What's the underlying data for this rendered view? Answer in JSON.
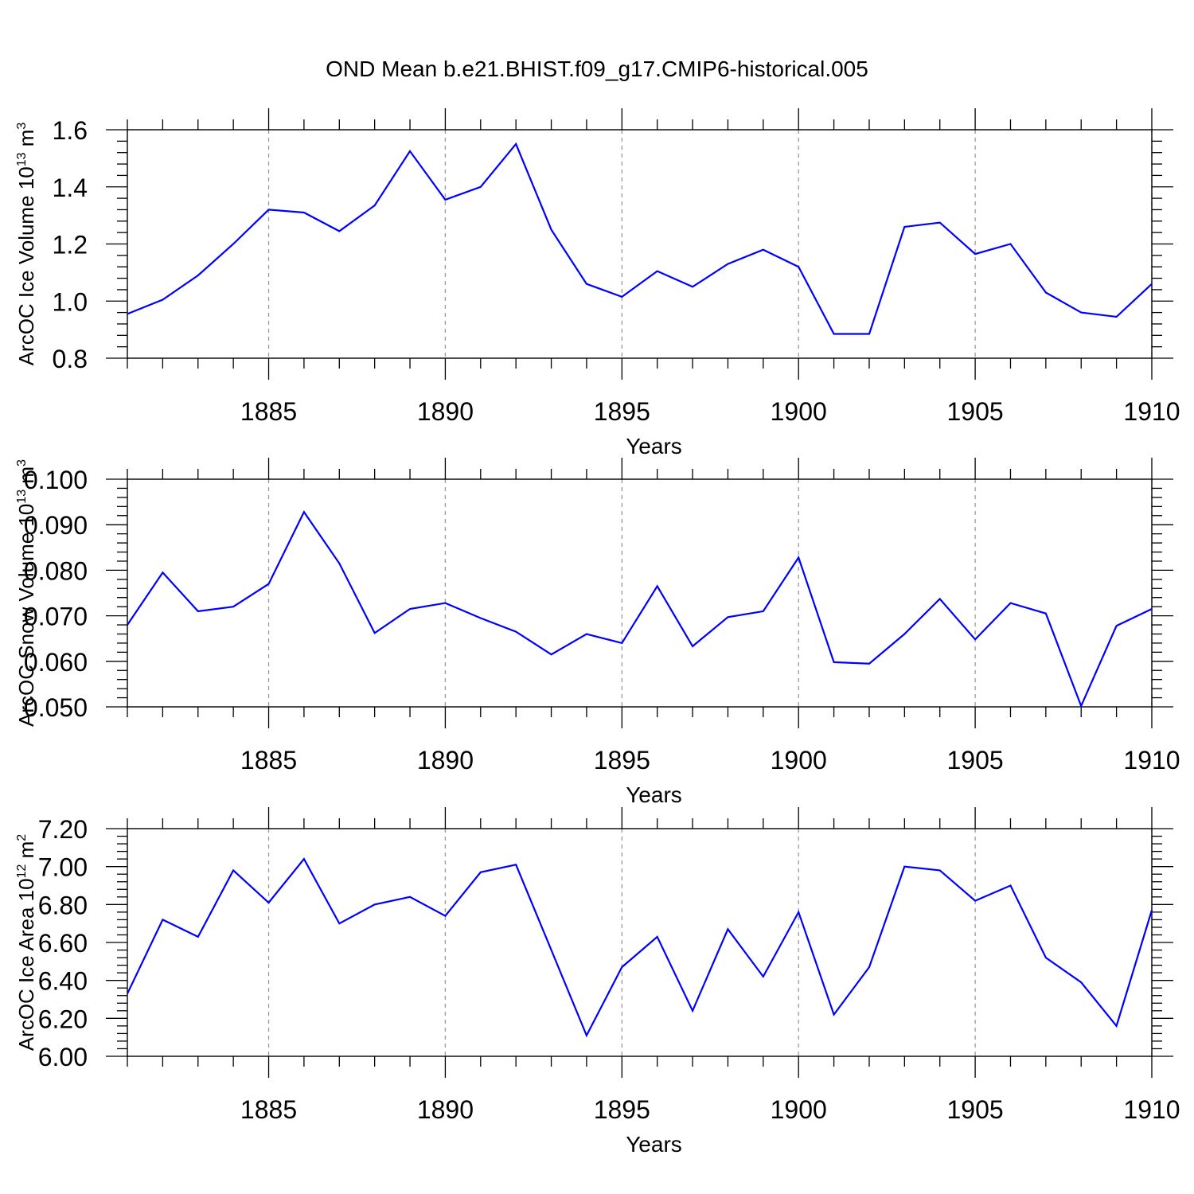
{
  "figure": {
    "title": "OND Mean b.e21.BHIST.f09_g17.CMIP6-historical.005",
    "line_color": "#0000ff",
    "grid_color": "#999999"
  },
  "chart_data": [
    {
      "type": "line",
      "xlabel": "Years",
      "ylabel": "ArcOC Ice Volume 10",
      "ylabel_sup1": "13",
      "ylabel_mid": " m",
      "ylabel_sup2": "3",
      "xlim": [
        1881,
        1910
      ],
      "ylim": [
        0.8,
        1.6
      ],
      "yticks": [
        0.8,
        1.0,
        1.2,
        1.4,
        1.6
      ],
      "yticklabels": [
        "0.8",
        "1.0",
        "1.2",
        "1.4",
        "1.6"
      ],
      "xticks": [
        1885,
        1890,
        1895,
        1900,
        1905,
        1910
      ],
      "xticklabels": [
        "1885",
        "1890",
        "1895",
        "1900",
        "1905",
        "1910"
      ],
      "grid": "vertical dashed at major x ticks",
      "x": [
        1881,
        1882,
        1883,
        1884,
        1885,
        1886,
        1887,
        1888,
        1889,
        1890,
        1891,
        1892,
        1893,
        1894,
        1895,
        1896,
        1897,
        1898,
        1899,
        1900,
        1901,
        1902,
        1903,
        1904,
        1905,
        1906,
        1907,
        1908,
        1909,
        1910
      ],
      "values": [
        0.955,
        1.005,
        1.09,
        1.2,
        1.32,
        1.31,
        1.245,
        1.335,
        1.525,
        1.355,
        1.4,
        1.55,
        1.25,
        1.06,
        1.015,
        1.105,
        1.05,
        1.13,
        1.18,
        1.12,
        0.885,
        0.885,
        1.26,
        1.275,
        1.165,
        1.2,
        1.03,
        0.96,
        0.945,
        1.06
      ]
    },
    {
      "type": "line",
      "xlabel": "Years",
      "ylabel": "ArcOC Snow Volume 10",
      "ylabel_sup1": "13",
      "ylabel_mid": " m",
      "ylabel_sup2": "3",
      "xlim": [
        1881,
        1910
      ],
      "ylim": [
        0.05,
        0.1
      ],
      "yticks": [
        0.05,
        0.06,
        0.07,
        0.08,
        0.09,
        0.1
      ],
      "yticklabels": [
        "0.050",
        "0.060",
        "0.070",
        "0.080",
        "0.090",
        "0.100"
      ],
      "xticks": [
        1885,
        1890,
        1895,
        1900,
        1905,
        1910
      ],
      "xticklabels": [
        "1885",
        "1890",
        "1895",
        "1900",
        "1905",
        "1910"
      ],
      "grid": "vertical dashed at major x ticks",
      "x": [
        1881,
        1882,
        1883,
        1884,
        1885,
        1886,
        1887,
        1888,
        1889,
        1890,
        1891,
        1892,
        1893,
        1894,
        1895,
        1896,
        1897,
        1898,
        1899,
        1900,
        1901,
        1902,
        1903,
        1904,
        1905,
        1906,
        1907,
        1908,
        1909,
        1910
      ],
      "values": [
        0.068,
        0.0795,
        0.071,
        0.072,
        0.077,
        0.0928,
        0.0815,
        0.0662,
        0.0715,
        0.0728,
        0.0695,
        0.0665,
        0.0615,
        0.066,
        0.064,
        0.0765,
        0.0633,
        0.0697,
        0.071,
        0.0828,
        0.0598,
        0.0595,
        0.066,
        0.0737,
        0.0648,
        0.0728,
        0.0705,
        0.0502,
        0.0678,
        0.0715
      ]
    },
    {
      "type": "line",
      "xlabel": "Years",
      "ylabel": "ArcOC Ice Area 10",
      "ylabel_sup1": "12",
      "ylabel_mid": " m",
      "ylabel_sup2": "2",
      "xlim": [
        1881,
        1910
      ],
      "ylim": [
        6.0,
        7.2
      ],
      "yticks": [
        6.0,
        6.2,
        6.4,
        6.6,
        6.8,
        7.0,
        7.2
      ],
      "yticklabels": [
        "6.00",
        "6.20",
        "6.40",
        "6.60",
        "6.80",
        "7.00",
        "7.20"
      ],
      "xticks": [
        1885,
        1890,
        1895,
        1900,
        1905,
        1910
      ],
      "xticklabels": [
        "1885",
        "1890",
        "1895",
        "1900",
        "1905",
        "1910"
      ],
      "grid": "vertical dashed at major x ticks",
      "x": [
        1881,
        1882,
        1883,
        1884,
        1885,
        1886,
        1887,
        1888,
        1889,
        1890,
        1891,
        1892,
        1893,
        1894,
        1895,
        1896,
        1897,
        1898,
        1899,
        1900,
        1901,
        1902,
        1903,
        1904,
        1905,
        1906,
        1907,
        1908,
        1909,
        1910
      ],
      "values": [
        6.33,
        6.72,
        6.63,
        6.98,
        6.81,
        7.04,
        6.7,
        6.8,
        6.84,
        6.74,
        6.97,
        7.01,
        6.56,
        6.11,
        6.47,
        6.63,
        6.24,
        6.67,
        6.42,
        6.76,
        6.22,
        6.47,
        7.0,
        6.98,
        6.82,
        6.9,
        6.52,
        6.39,
        6.16,
        6.77
      ]
    }
  ]
}
